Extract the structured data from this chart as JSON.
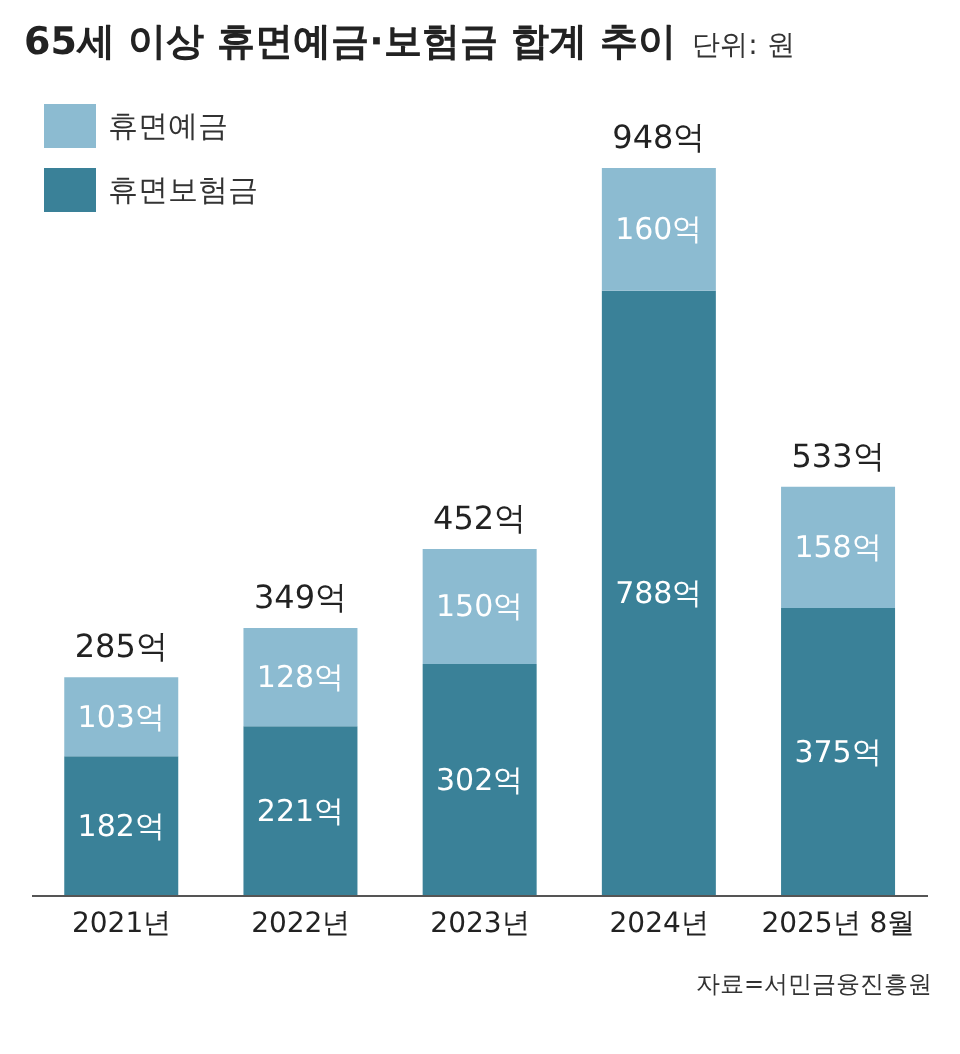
{
  "chart_data": {
    "type": "bar",
    "title": "65세 이상 휴면예금·보험금 합계 추이",
    "subtitle": "단위: 원",
    "annotations": [
      "자료=서민금융진흥원"
    ],
    "categories": [
      "2021년",
      "2022년",
      "2023년",
      "2024년",
      "2025년 8월"
    ],
    "stacked": true,
    "legend": "top left",
    "grid": false,
    "series": [
      {
        "name": "휴면보험금",
        "color": "#3a8198",
        "values": [
          182,
          221,
          302,
          788,
          375
        ],
        "value_labels": [
          "182억",
          "221억",
          "302억",
          "788억",
          "375억"
        ]
      },
      {
        "name": "휴면예금",
        "color": "#8cbbd1",
        "values": [
          103,
          128,
          150,
          160,
          158
        ],
        "value_labels": [
          "103억",
          "128억",
          "150억",
          "160억",
          "158억"
        ]
      }
    ],
    "totals": [
      "285억",
      "349억",
      "452억",
      "948억",
      "533억"
    ]
  }
}
